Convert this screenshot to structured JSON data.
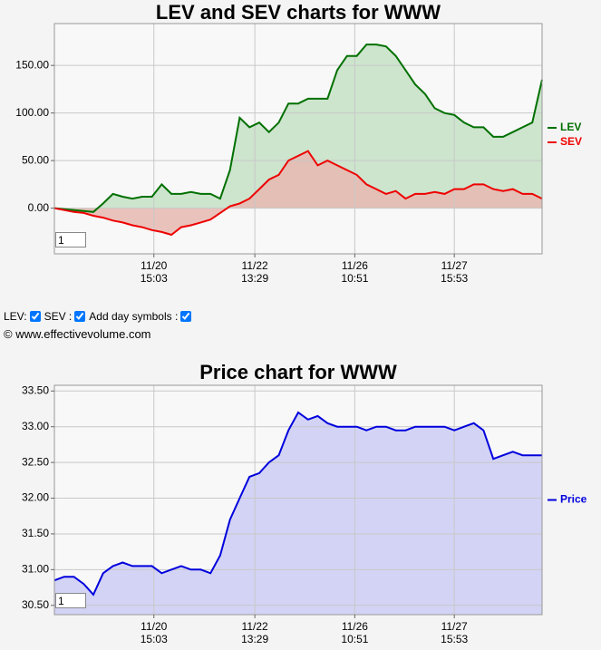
{
  "chart_data": [
    {
      "type": "area",
      "title": "LEV and SEV charts for WWW",
      "input_value": "1",
      "x": [
        0,
        2,
        4,
        6,
        8,
        10,
        12,
        14,
        16,
        18,
        20,
        22,
        24,
        26,
        28,
        30,
        32,
        34,
        36,
        38,
        40,
        42,
        44,
        46,
        48,
        50,
        52,
        54,
        56,
        58,
        60,
        62,
        64,
        66,
        68,
        70,
        72,
        74,
        76,
        78,
        80,
        82,
        84,
        86,
        88,
        90,
        92,
        94,
        96,
        98,
        100
      ],
      "series": [
        {
          "name": "LEV",
          "color": "#007000",
          "fill_color": "#c6e0c6",
          "values": [
            0,
            -1,
            -2,
            -3,
            -4,
            5,
            15,
            12,
            10,
            12,
            12,
            25,
            15,
            15,
            17,
            15,
            15,
            10,
            40,
            95,
            85,
            90,
            80,
            90,
            110,
            110,
            115,
            115,
            115,
            145,
            160,
            160,
            172,
            172,
            170,
            160,
            145,
            130,
            120,
            105,
            100,
            98,
            90,
            85,
            85,
            75,
            75,
            80,
            85,
            90,
            135
          ]
        },
        {
          "name": "SEV",
          "color": "#ee0000",
          "fill_color": "#e6b8b0",
          "values": [
            0,
            -2,
            -4,
            -5,
            -8,
            -10,
            -13,
            -15,
            -18,
            -20,
            -23,
            -25,
            -28,
            -20,
            -18,
            -15,
            -12,
            -5,
            2,
            5,
            10,
            20,
            30,
            35,
            50,
            55,
            60,
            45,
            50,
            45,
            40,
            35,
            25,
            20,
            15,
            18,
            10,
            15,
            15,
            17,
            15,
            20,
            20,
            25,
            25,
            20,
            18,
            20,
            15,
            15,
            10
          ]
        }
      ],
      "xlim": [
        0,
        100
      ],
      "xticks": [
        {
          "value": 20.4,
          "label": "11/20\n15:03"
        },
        {
          "value": 41.1,
          "label": "11/22\n13:29"
        },
        {
          "value": 61.6,
          "label": "11/26\n10:51"
        },
        {
          "value": 82,
          "label": "11/27\n15:53"
        }
      ],
      "ylim": [
        -48,
        194
      ],
      "yticks": [
        {
          "value": 0,
          "label": "0.00"
        },
        {
          "value": 50,
          "label": "50.00"
        },
        {
          "value": 100,
          "label": "100.00"
        },
        {
          "value": 150,
          "label": "150.00"
        }
      ],
      "grid": true
    },
    {
      "type": "area",
      "title": "Price chart for WWW",
      "input_value": "1",
      "x": [
        0,
        2,
        4,
        6,
        8,
        10,
        12,
        14,
        16,
        18,
        20,
        22,
        24,
        26,
        28,
        30,
        32,
        34,
        36,
        38,
        40,
        42,
        44,
        46,
        48,
        50,
        52,
        54,
        56,
        58,
        60,
        62,
        64,
        66,
        68,
        70,
        72,
        74,
        76,
        78,
        80,
        82,
        84,
        86,
        88,
        90,
        92,
        94,
        96,
        98,
        100
      ],
      "series": [
        {
          "name": "Price",
          "color": "#0000dd",
          "fill_color": "#ccccf4",
          "values": [
            30.85,
            30.9,
            30.9,
            30.8,
            30.65,
            30.95,
            31.05,
            31.1,
            31.05,
            31.05,
            31.05,
            30.95,
            31.0,
            31.05,
            31.0,
            31.0,
            30.95,
            31.2,
            31.7,
            32.0,
            32.3,
            32.35,
            32.5,
            32.6,
            32.95,
            33.2,
            33.1,
            33.15,
            33.05,
            33.0,
            33.0,
            33.0,
            32.95,
            33.0,
            33.0,
            32.95,
            32.95,
            33.0,
            33.0,
            33.0,
            33.0,
            32.95,
            33.0,
            33.05,
            32.95,
            32.55,
            32.6,
            32.65,
            32.6,
            32.6,
            32.6
          ]
        }
      ],
      "xlim": [
        0,
        100
      ],
      "xticks": [
        {
          "value": 20.4,
          "label": "11/20\n15:03"
        },
        {
          "value": 41.1,
          "label": "11/22\n13:29"
        },
        {
          "value": 61.6,
          "label": "11/26\n10:51"
        },
        {
          "value": 82,
          "label": "11/27\n15:53"
        }
      ],
      "ylim": [
        30.37,
        33.58
      ],
      "yticks": [
        {
          "value": 30.5,
          "label": "30.50"
        },
        {
          "value": 31,
          "label": "31.00"
        },
        {
          "value": 31.5,
          "label": "31.50"
        },
        {
          "value": 32,
          "label": "32.00"
        },
        {
          "value": 32.5,
          "label": "32.50"
        },
        {
          "value": 33,
          "label": "33.00"
        },
        {
          "value": 33.5,
          "label": "33.50"
        }
      ],
      "grid": true
    }
  ],
  "controls": {
    "labels": [
      "LEV:",
      "SEV :",
      "Add day symbols :"
    ],
    "checked": [
      true,
      true,
      true
    ],
    "footer": "© www.effectivevolume.com"
  }
}
